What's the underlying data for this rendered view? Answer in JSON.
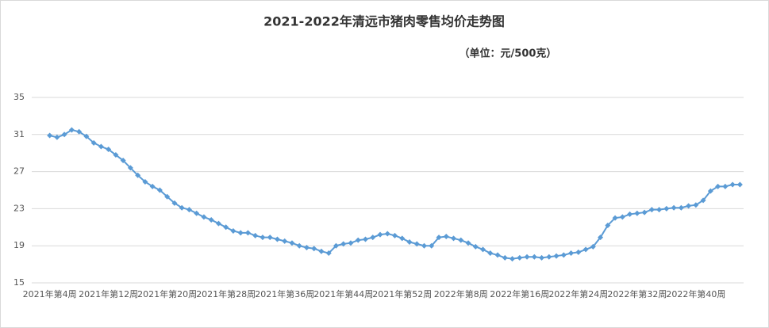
{
  "chart_data": {
    "type": "line",
    "title": "2021-2022年清远市猪肉零售均价走势图",
    "subtitle": "（单位：元/500克）",
    "categories": [
      "2021年第4周",
      null,
      null,
      null,
      null,
      null,
      null,
      null,
      "2021年第12周",
      null,
      null,
      null,
      null,
      null,
      null,
      null,
      "2021年第20周",
      null,
      null,
      null,
      null,
      null,
      null,
      null,
      "2021年第28周",
      null,
      null,
      null,
      null,
      null,
      null,
      null,
      "2021年第36周",
      null,
      null,
      null,
      null,
      null,
      null,
      null,
      "2021年第44周",
      null,
      null,
      null,
      null,
      null,
      null,
      null,
      "2021年第52周",
      null,
      null,
      null,
      null,
      null,
      null,
      null,
      "2022年第8周",
      null,
      null,
      null,
      null,
      null,
      null,
      null,
      "2022年第16周",
      null,
      null,
      null,
      null,
      null,
      null,
      null,
      "2022年第24周",
      null,
      null,
      null,
      null,
      null,
      null,
      null,
      "2022年第32周",
      null,
      null,
      null,
      null,
      null,
      null,
      null,
      "2022年第40周",
      null,
      null,
      null,
      null,
      null,
      null
    ],
    "series": [
      {
        "color": "#5b9bd5",
        "values": [
          30.9,
          30.7,
          31.0,
          31.5,
          31.3,
          30.8,
          30.1,
          29.7,
          29.4,
          28.8,
          28.2,
          27.4,
          26.6,
          25.9,
          25.4,
          25.0,
          24.3,
          23.6,
          23.1,
          22.9,
          22.5,
          22.1,
          21.8,
          21.4,
          21.0,
          20.6,
          20.4,
          20.4,
          20.1,
          19.9,
          19.9,
          19.7,
          19.5,
          19.3,
          19.0,
          18.8,
          18.7,
          18.4,
          18.2,
          19.0,
          19.2,
          19.3,
          19.6,
          19.7,
          19.9,
          20.2,
          20.3,
          20.1,
          19.8,
          19.4,
          19.2,
          19.0,
          19.0,
          19.9,
          20.0,
          19.8,
          19.6,
          19.3,
          18.9,
          18.6,
          18.2,
          18.0,
          17.7,
          17.6,
          17.7,
          17.8,
          17.8,
          17.7,
          17.8,
          17.9,
          18.0,
          18.2,
          18.3,
          18.6,
          18.9,
          19.9,
          21.2,
          22.0,
          22.1,
          22.4,
          22.5,
          22.6,
          22.9,
          22.9,
          23.0,
          23.1,
          23.1,
          23.3,
          23.4,
          23.9,
          24.9,
          25.4,
          25.4,
          25.6,
          25.6
        ]
      }
    ],
    "ylim": [
      15,
      35
    ],
    "yticks": [
      15,
      19,
      23,
      27,
      31,
      35
    ],
    "grid": true
  }
}
